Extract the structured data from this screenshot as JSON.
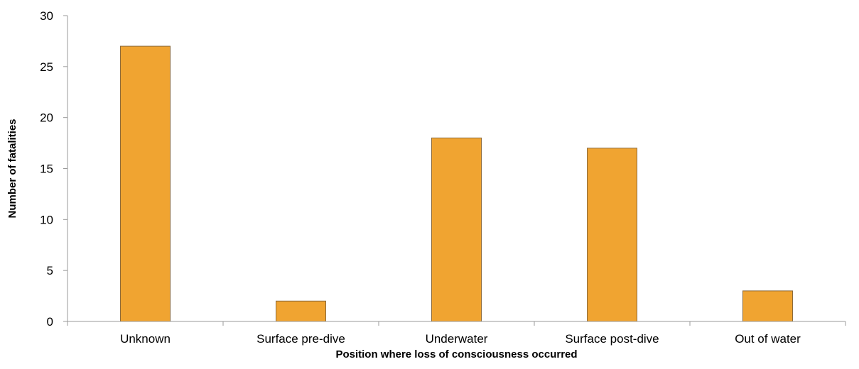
{
  "chart_data": {
    "type": "bar",
    "categories": [
      "Unknown",
      "Surface pre-dive",
      "Underwater",
      "Surface post-dive",
      "Out of water"
    ],
    "values": [
      27,
      2,
      18,
      17,
      3
    ],
    "xlabel": "Position where loss of consciousness occurred",
    "ylabel": "Number of fatalities",
    "ylim": [
      0,
      30
    ],
    "yticks": [
      0,
      5,
      10,
      15,
      20,
      25,
      30
    ],
    "grid": false,
    "legend": "none",
    "bar_color": "#F0A431"
  }
}
